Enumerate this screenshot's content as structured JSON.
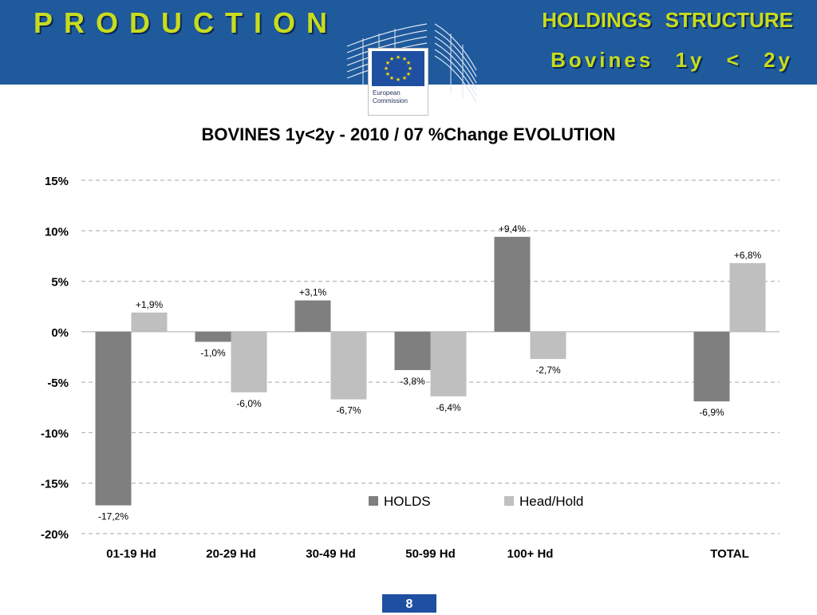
{
  "header": {
    "production_title": "PRODUCTION",
    "holdings_title": "HOLDINGS STRUCTURE",
    "subtitle": "Bovines 1y < 2y"
  },
  "logo": {
    "text": "European Commission"
  },
  "colors": {
    "header_bg": "#1f5a9c",
    "title_green": "#c8dc1e",
    "holds": "#7f7f7f",
    "head_hold": "#bfbfbf"
  },
  "chart_data": {
    "type": "bar",
    "title": "BOVINES 1y<2y   -   2010 / 07   %Change EVOLUTION",
    "categories": [
      "01-19 Hd",
      "20-29 Hd",
      "30-49 Hd",
      "50-99 Hd",
      "100+ Hd",
      "",
      "TOTAL"
    ],
    "series": [
      {
        "name": "HOLDS",
        "values": [
          -17.2,
          -1.0,
          3.1,
          -3.8,
          9.4,
          null,
          -6.9
        ],
        "labels": [
          "-17,2%",
          "-1,0%",
          "+3,1%",
          "-3,8%",
          "+9,4%",
          "",
          "-6,9%"
        ]
      },
      {
        "name": "Head/Hold",
        "values": [
          1.9,
          -6.0,
          -6.7,
          -6.4,
          -2.7,
          null,
          6.8
        ],
        "labels": [
          "+1,9%",
          "-6,0%",
          "-6,7%",
          "-6,4%",
          "-2,7%",
          "",
          "+6,8%"
        ]
      }
    ],
    "yticks": [
      "15%",
      "10%",
      "5%",
      "0%",
      "-5%",
      "-10%",
      "-15%",
      "-20%"
    ],
    "ylim": [
      -20,
      15
    ],
    "ystep": 5,
    "grid": true,
    "legend": "bottom-right inside"
  },
  "page": {
    "number": "8"
  }
}
